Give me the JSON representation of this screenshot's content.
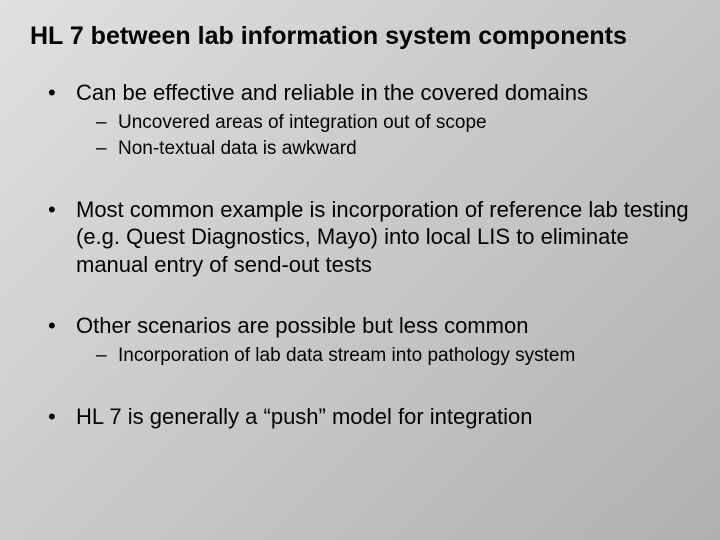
{
  "slide": {
    "title": "HL 7 between lab information system components",
    "title_fontsize": 25,
    "title_fontweight": "bold",
    "body_fontsize_l1": 22,
    "body_fontsize_l2": 19,
    "text_color": "#000000",
    "background": {
      "type": "linear-gradient",
      "angle_deg": 135,
      "stops": [
        "#e0e0e0",
        "#c8c8c8",
        "#b0b0b0"
      ]
    },
    "bullets": [
      {
        "text": "Can be effective and reliable in the covered domains",
        "sub": [
          "Uncovered areas of integration out of scope",
          "Non-textual data is awkward"
        ]
      },
      {
        "text": "Most common example is incorporation of reference lab testing (e.g. Quest Diagnostics, Mayo) into local LIS to eliminate manual entry of send-out tests",
        "sub": []
      },
      {
        "text": "Other scenarios are possible but less common",
        "sub": [
          "Incorporation of lab data stream into pathology system"
        ]
      },
      {
        "text": "HL 7 is generally a “push” model for integration",
        "sub": []
      }
    ]
  }
}
